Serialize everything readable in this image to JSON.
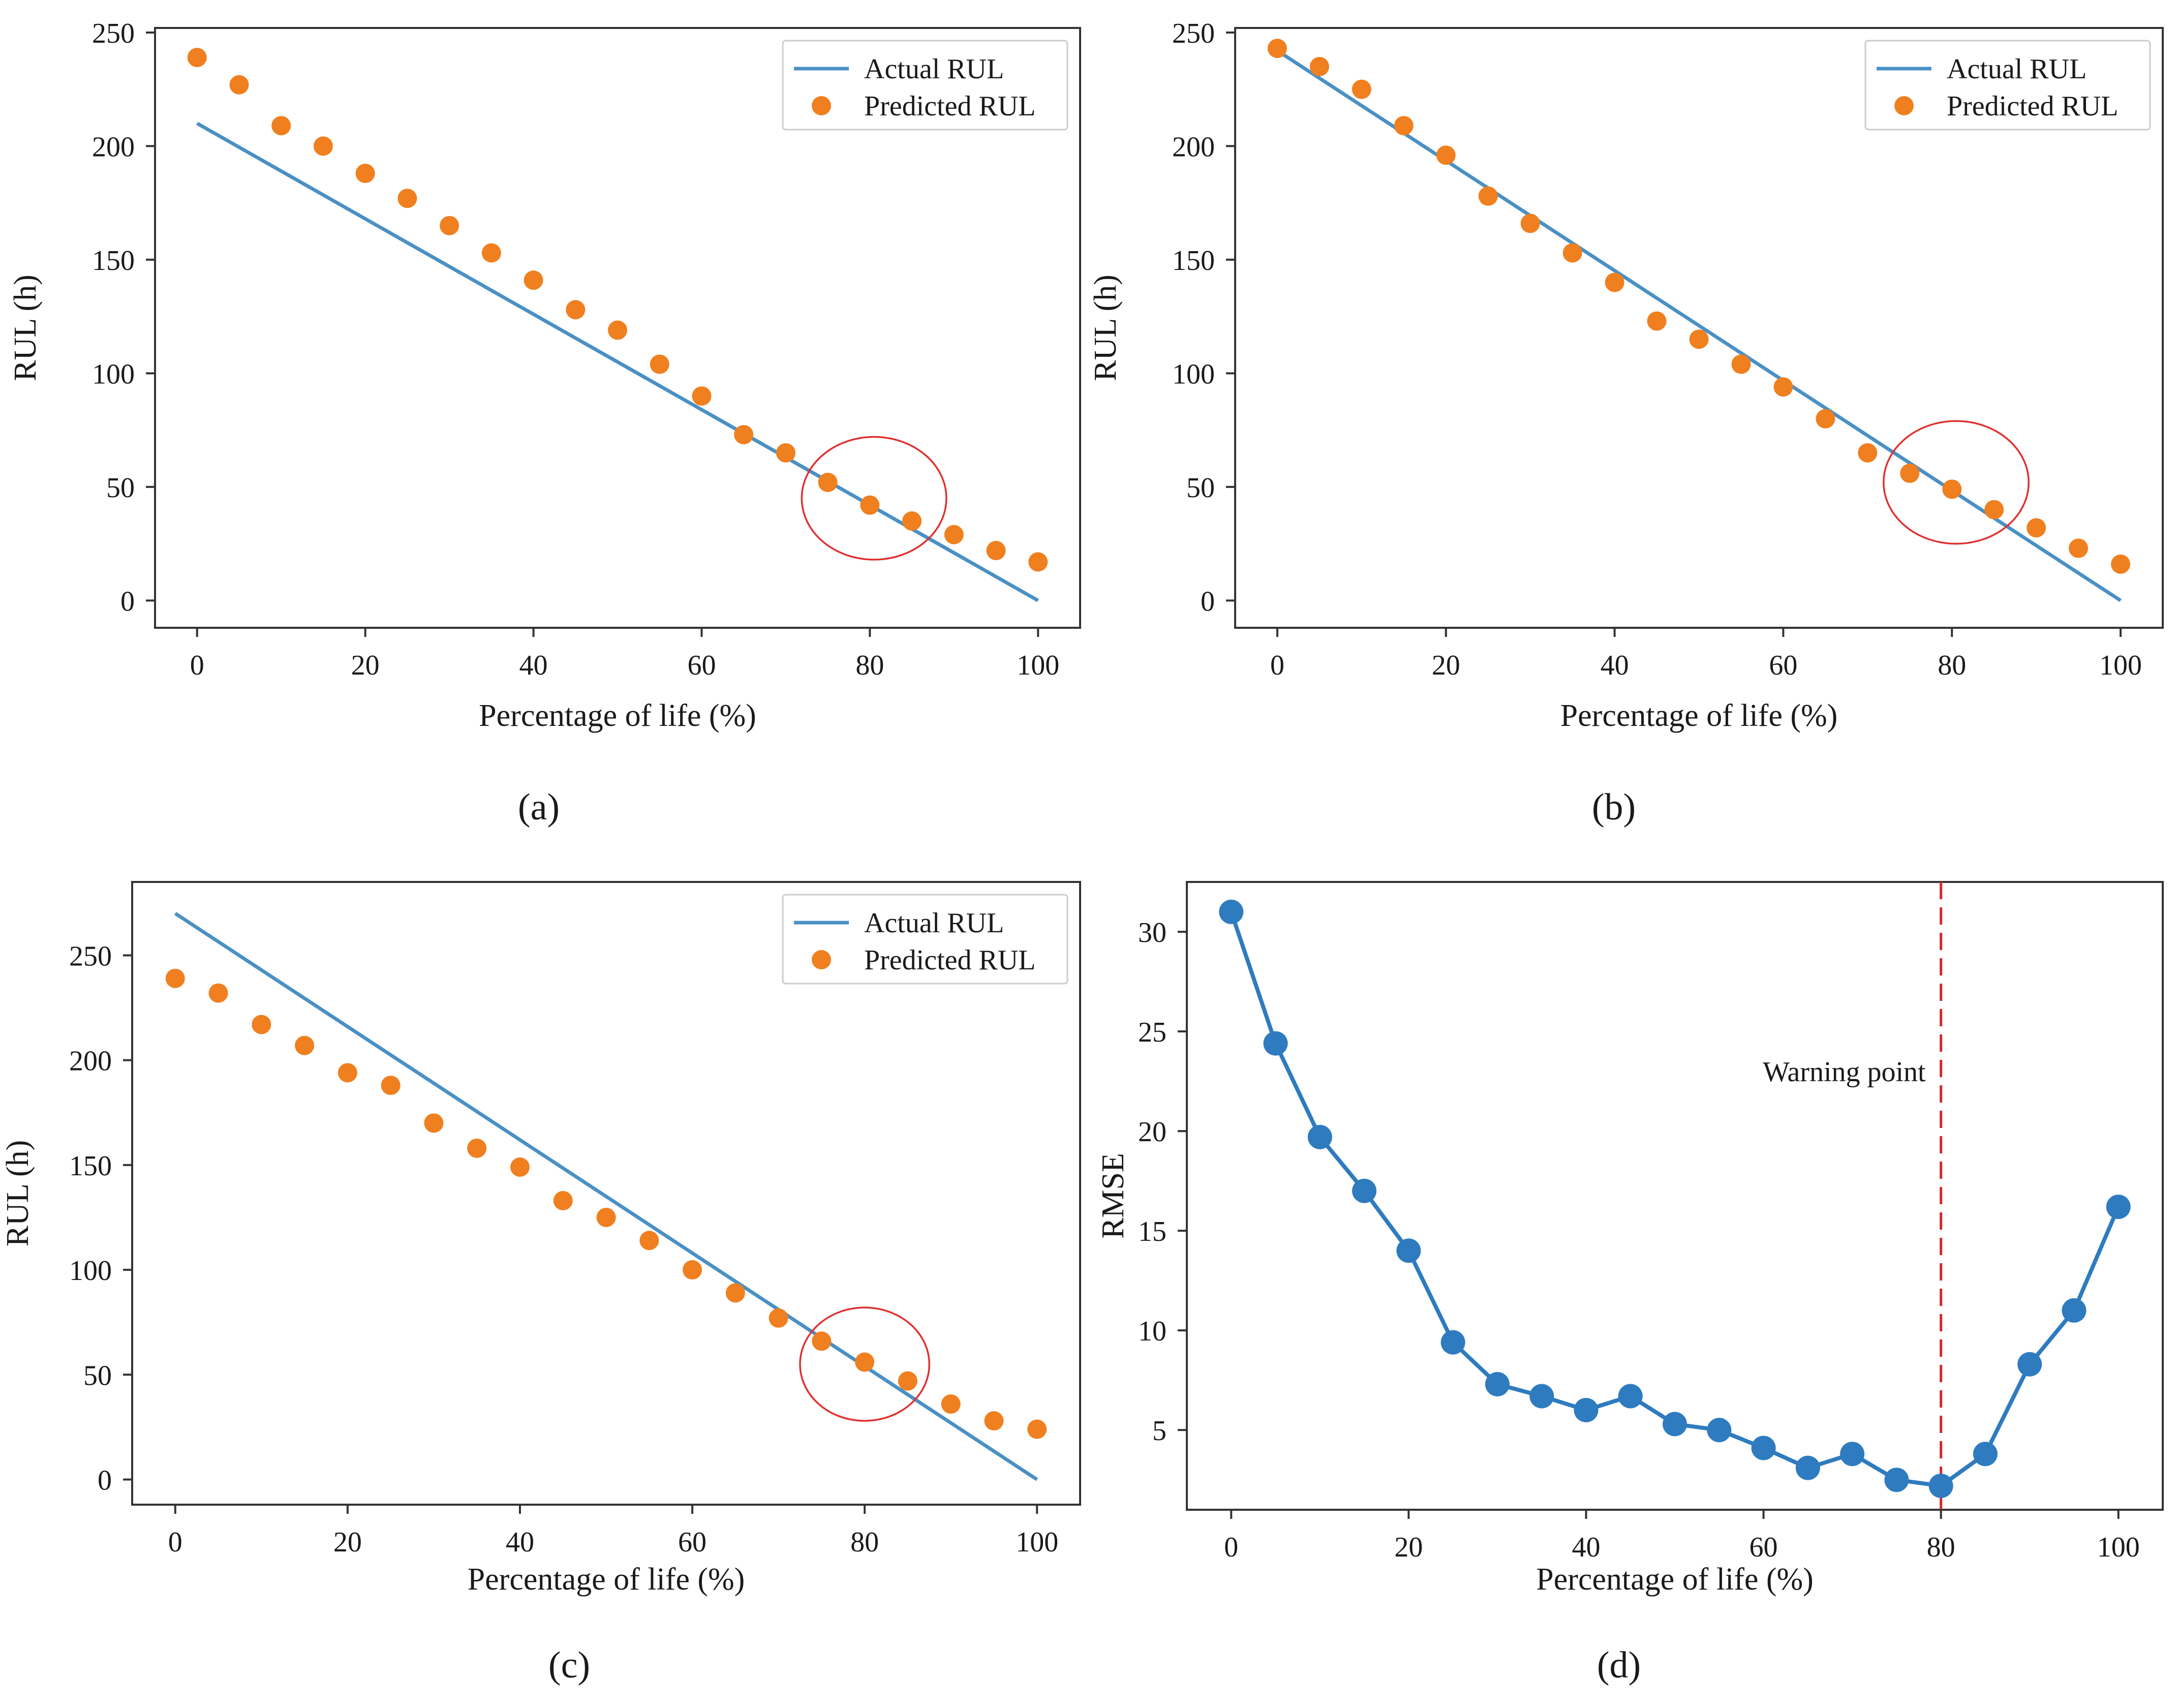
{
  "chart_data": [
    {
      "panel": "(a)",
      "type": "line+scatter",
      "xlabel": "Percentage of life (%)",
      "ylabel": "RUL (h)",
      "xlim": [
        -5,
        105
      ],
      "ylim": [
        -12,
        252
      ],
      "xticks": [
        0,
        20,
        40,
        60,
        80,
        100
      ],
      "yticks": [
        0,
        50,
        100,
        150,
        200,
        250
      ],
      "legend_position": "top-right",
      "series": [
        {
          "name": "Actual RUL",
          "kind": "line",
          "color": "#4a90c4",
          "x": [
            0,
            100
          ],
          "y": [
            210,
            0
          ]
        },
        {
          "name": "Predicted RUL",
          "kind": "scatter",
          "color": "#f07f1f",
          "x": [
            0,
            5,
            10,
            15,
            20,
            25,
            30,
            35,
            40,
            45,
            50,
            55,
            60,
            65,
            70,
            75,
            80,
            85,
            90,
            95,
            100
          ],
          "y": [
            239,
            227,
            209,
            200,
            188,
            177,
            165,
            153,
            141,
            128,
            119,
            104,
            90,
            73,
            65,
            52,
            42,
            35,
            29,
            22,
            17
          ]
        }
      ],
      "annotations": [
        {
          "type": "ellipse",
          "color": "#e03030",
          "cx": 80.5,
          "cy": 45,
          "rx": 8.6,
          "ry": 27
        }
      ],
      "caption": "(a)"
    },
    {
      "panel": "(b)",
      "type": "line+scatter",
      "xlabel": "Percentage of life (%)",
      "ylabel": "RUL (h)",
      "xlim": [
        -5,
        105
      ],
      "ylim": [
        -12,
        252
      ],
      "xticks": [
        0,
        20,
        40,
        60,
        80,
        100
      ],
      "yticks": [
        0,
        50,
        100,
        150,
        200,
        250
      ],
      "legend_position": "top-right",
      "series": [
        {
          "name": "Actual RUL",
          "kind": "line",
          "color": "#4a90c4",
          "x": [
            0,
            100
          ],
          "y": [
            242,
            0
          ]
        },
        {
          "name": "Predicted RUL",
          "kind": "scatter",
          "color": "#f07f1f",
          "x": [
            0,
            5,
            10,
            15,
            20,
            25,
            30,
            35,
            40,
            45,
            50,
            55,
            60,
            65,
            70,
            75,
            80,
            85,
            90,
            95,
            100
          ],
          "y": [
            243,
            235,
            225,
            209,
            196,
            178,
            166,
            153,
            140,
            123,
            115,
            104,
            94,
            80,
            65,
            56,
            49,
            40,
            32,
            23,
            16
          ]
        }
      ],
      "annotations": [
        {
          "type": "ellipse",
          "color": "#e03030",
          "cx": 80.5,
          "cy": 52,
          "rx": 8.6,
          "ry": 27
        }
      ],
      "caption": "(b)"
    },
    {
      "panel": "(c)",
      "type": "line+scatter",
      "xlabel": "Percentage of life (%)",
      "ylabel": "RUL (h)",
      "xlim": [
        -5,
        105
      ],
      "ylim": [
        -12,
        285
      ],
      "xticks": [
        0,
        20,
        40,
        60,
        80,
        100
      ],
      "yticks": [
        0,
        50,
        100,
        150,
        200,
        250
      ],
      "legend_position": "top-right",
      "series": [
        {
          "name": "Actual RUL",
          "kind": "line",
          "color": "#4a90c4",
          "x": [
            0,
            100
          ],
          "y": [
            270,
            0
          ]
        },
        {
          "name": "Predicted RUL",
          "kind": "scatter",
          "color": "#f07f1f",
          "x": [
            0,
            5,
            10,
            15,
            20,
            25,
            30,
            35,
            40,
            45,
            50,
            55,
            60,
            65,
            70,
            75,
            80,
            85,
            90,
            95,
            100
          ],
          "y": [
            239,
            232,
            217,
            207,
            194,
            188,
            170,
            158,
            149,
            133,
            125,
            114,
            100,
            89,
            77,
            66,
            56,
            47,
            36,
            28,
            24
          ]
        }
      ],
      "annotations": [
        {
          "type": "ellipse",
          "color": "#e03030",
          "cx": 80,
          "cy": 55,
          "rx": 7.5,
          "ry": 27
        }
      ],
      "caption": "(c)"
    },
    {
      "panel": "(d)",
      "type": "line",
      "xlabel": "Percentage of life (%)",
      "ylabel": "RMSE",
      "xlim": [
        -5,
        105
      ],
      "ylim": [
        1,
        32.5
      ],
      "xticks": [
        0,
        20,
        40,
        60,
        80,
        100
      ],
      "yticks": [
        5,
        10,
        15,
        20,
        25,
        30
      ],
      "series": [
        {
          "name": "",
          "kind": "line+markers",
          "color": "#2e7bbf",
          "x": [
            0,
            5,
            10,
            15,
            20,
            25,
            30,
            35,
            40,
            45,
            50,
            55,
            60,
            65,
            70,
            75,
            80,
            85,
            90,
            95,
            100
          ],
          "y": [
            31,
            24.4,
            19.7,
            17,
            14,
            9.4,
            7.3,
            6.7,
            6,
            6.7,
            5.3,
            5,
            4.1,
            3.1,
            3.8,
            2.5,
            2.2,
            3.8,
            8.3,
            11,
            16.2
          ]
        }
      ],
      "vline": {
        "x": 80,
        "color": "#d62728",
        "style": "dashed"
      },
      "annotation_text": "Warning point",
      "caption": "(d)"
    }
  ],
  "captions": [
    "(a)",
    "(b)",
    "(c)",
    "(d)"
  ],
  "warning_label": "Warning point"
}
